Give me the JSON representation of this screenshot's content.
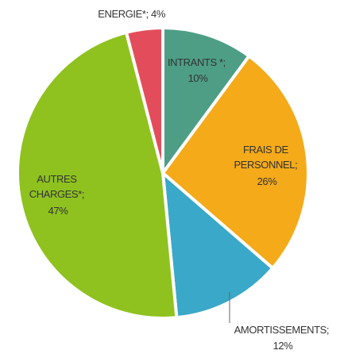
{
  "chart_data": {
    "type": "pie",
    "title": "",
    "slices": [
      {
        "name": "INTRANTS *",
        "value": 10,
        "value_label": "10%",
        "color": "#4e9e86"
      },
      {
        "name": "FRAIS DE PERSONNEL",
        "value": 26,
        "value_label": "26%",
        "color": "#f4aa19"
      },
      {
        "name": "AMORTISSEMENTS",
        "value": 12,
        "value_label": "12%",
        "color": "#3aa8c8"
      },
      {
        "name": "AUTRES CHARGES*",
        "value": 47,
        "value_label": "47%",
        "color": "#8fc21f"
      },
      {
        "name": "ENERGIE*",
        "value": 4,
        "value_label": "4%",
        "color": "#e34d5b"
      }
    ],
    "legend": "none (labels on slices)",
    "labels": {
      "intrants": [
        "INTRANTS *;",
        "10%"
      ],
      "frais": [
        "FRAIS DE",
        "PERSONNEL;",
        "26%"
      ],
      "amort": [
        "AMORTISSEMENTS;",
        "12%"
      ],
      "autres": [
        "AUTRES",
        "CHARGES*;",
        "47%"
      ],
      "energie": [
        "ENERGIE*; 4%"
      ]
    }
  }
}
